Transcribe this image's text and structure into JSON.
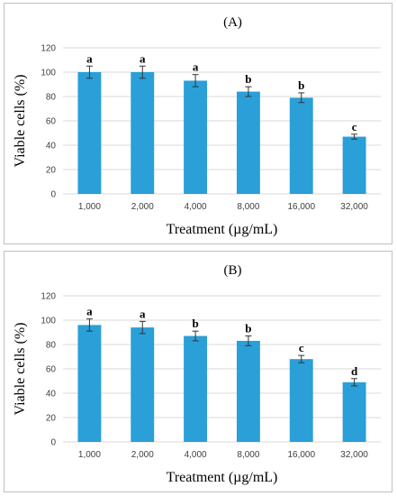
{
  "chart_data": [
    {
      "type": "bar",
      "title": "(A)",
      "xlabel": "Treatment (µg/mL)",
      "ylabel": "Viable cells (%)",
      "ylim": [
        0,
        120
      ],
      "yticks": [
        "0",
        "20",
        "40",
        "60",
        "80",
        "100",
        "120"
      ],
      "grid": true,
      "categories": [
        "1,000",
        "2,000",
        "4,000",
        "8,000",
        "16,000",
        "32,000"
      ],
      "values": [
        100,
        100,
        93,
        84,
        79,
        47
      ],
      "errors": [
        5,
        5,
        5,
        4,
        4,
        2
      ],
      "labels": [
        "a",
        "a",
        "a",
        "b",
        "b",
        "c"
      ],
      "bar_color": "#2a9fd8"
    },
    {
      "type": "bar",
      "title": "(B)",
      "xlabel": "Treatment (µg/mL)",
      "ylabel": "Viable cells (%)",
      "ylim": [
        0,
        120
      ],
      "yticks": [
        "0",
        "20",
        "40",
        "60",
        "80",
        "100",
        "120"
      ],
      "grid": true,
      "categories": [
        "1,000",
        "2,000",
        "4,000",
        "8,000",
        "16,000",
        "32,000"
      ],
      "values": [
        96,
        94,
        87,
        83,
        68,
        49
      ],
      "errors": [
        5,
        5,
        4,
        4,
        3,
        3
      ],
      "labels": [
        "a",
        "a",
        "b",
        "b",
        "c",
        "d"
      ],
      "bar_color": "#2a9fd8"
    }
  ]
}
